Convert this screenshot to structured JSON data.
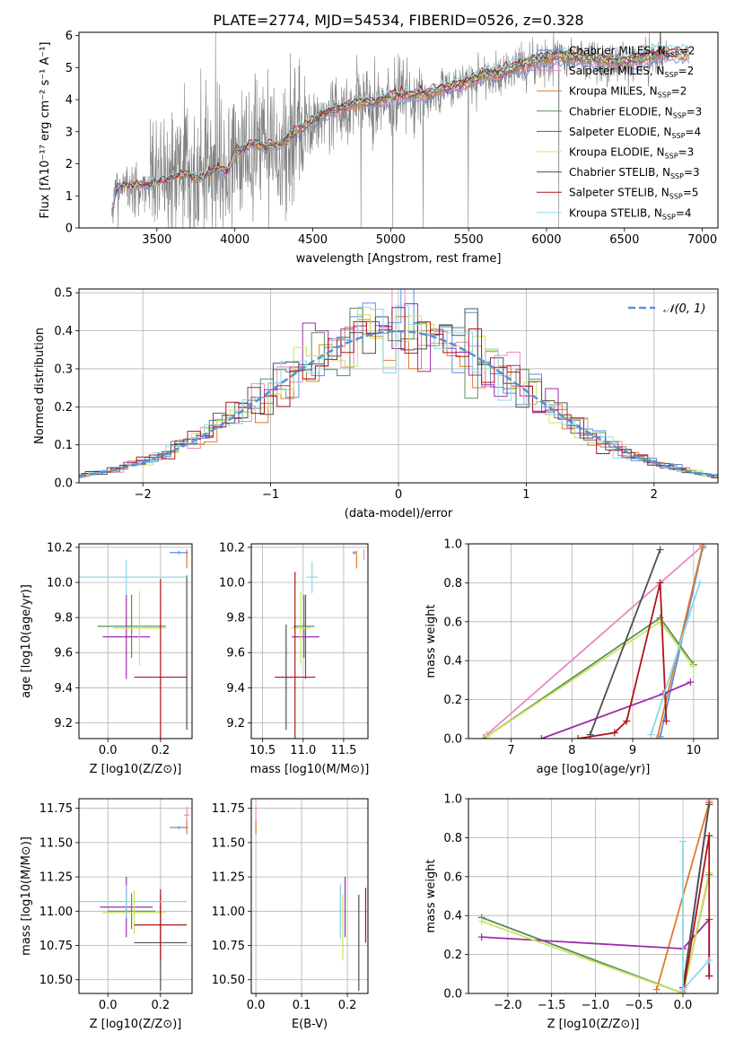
{
  "figure": {
    "title": "PLATE=2774, MJD=54534, FIBERID=0526, z=0.328"
  },
  "colors": {
    "data": "#808080",
    "normal_curve": "#5b8fd6"
  },
  "legend_models": [
    {
      "name": "Chabrier MILES",
      "nssp": 2,
      "color": "#5b8ee6"
    },
    {
      "name": "Salpeter MILES",
      "nssp": 2,
      "color": "#e98ac2"
    },
    {
      "name": "Kroupa MILES",
      "nssp": 2,
      "color": "#e07b28"
    },
    {
      "name": "Chabrier ELODIE",
      "nssp": 3,
      "color": "#5c8c5c"
    },
    {
      "name": "Salpeter ELODIE",
      "nssp": 4,
      "color": "#9b2ea8"
    },
    {
      "name": "Kroupa ELODIE",
      "nssp": 3,
      "color": "#c8e65a"
    },
    {
      "name": "Chabrier STELIB",
      "nssp": 3,
      "color": "#505050"
    },
    {
      "name": "Salpeter STELIB",
      "nssp": 5,
      "color": "#b0141c"
    },
    {
      "name": "Kroupa STELIB",
      "nssp": 4,
      "color": "#8ad8e8"
    }
  ],
  "chart_data": [
    {
      "id": "spectrum",
      "type": "line",
      "xlabel": "wavelength [Angstrom, rest frame]",
      "ylabel": "Flux [fλ10⁻¹⁷ erg cm⁻² s⁻¹ A⁻¹]",
      "xlim": [
        3000,
        7100
      ],
      "ylim": [
        0,
        6.1
      ],
      "xticks": [
        3500,
        4000,
        4500,
        5000,
        5500,
        6000,
        6500,
        7000
      ],
      "yticks": [
        0,
        1,
        2,
        3,
        4,
        5,
        6
      ],
      "grid": false,
      "legend": "upper right",
      "data_range": [
        3210,
        6780
      ],
      "model_continuum": [
        [
          3210,
          0.1
        ],
        [
          3230,
          1.15
        ],
        [
          3260,
          1.3
        ],
        [
          3300,
          1.28
        ],
        [
          3400,
          1.35
        ],
        [
          3500,
          1.4
        ],
        [
          3600,
          1.55
        ],
        [
          3700,
          1.7
        ],
        [
          3750,
          1.5
        ],
        [
          3850,
          1.75
        ],
        [
          3900,
          1.9
        ],
        [
          3950,
          1.7
        ],
        [
          4000,
          2.3
        ],
        [
          4100,
          2.6
        ],
        [
          4200,
          2.5
        ],
        [
          4300,
          2.6
        ],
        [
          4400,
          3.0
        ],
        [
          4500,
          3.3
        ],
        [
          4600,
          3.6
        ],
        [
          4700,
          3.7
        ],
        [
          4800,
          3.9
        ],
        [
          4900,
          3.85
        ],
        [
          5000,
          4.05
        ],
        [
          5100,
          4.1
        ],
        [
          5200,
          4.1
        ],
        [
          5300,
          4.25
        ],
        [
          5400,
          4.35
        ],
        [
          5500,
          4.5
        ],
        [
          5600,
          4.75
        ],
        [
          5700,
          4.75
        ],
        [
          5800,
          4.95
        ],
        [
          5900,
          5.1
        ],
        [
          6000,
          5.25
        ],
        [
          6100,
          5.3
        ],
        [
          6200,
          5.25
        ],
        [
          6300,
          5.2
        ],
        [
          6400,
          5.15
        ],
        [
          6500,
          5.1
        ],
        [
          6600,
          5.2
        ],
        [
          6700,
          5.35
        ],
        [
          6800,
          5.4
        ],
        [
          6900,
          5.35
        ]
      ]
    },
    {
      "id": "residuals",
      "type": "histogram",
      "xlabel": "(data-model)/error",
      "ylabel": "Normed distribution",
      "xlim": [
        -2.5,
        2.5
      ],
      "ylim": [
        0,
        0.51
      ],
      "xticks": [
        -2,
        -1,
        0,
        1,
        2
      ],
      "yticks": [
        0.0,
        0.1,
        0.2,
        0.3,
        0.4,
        0.5
      ],
      "grid": true,
      "legend": "upper right",
      "bin_width": 0.1,
      "reference_curve": "N(0,1)"
    },
    {
      "id": "age-vs-Z",
      "type": "errorbar",
      "xlabel": "Z [log10(Z/Z⊙)]",
      "ylabel": "age [log10(age/yr)]",
      "xlim": [
        -0.11,
        0.32
      ],
      "ylim": [
        9.11,
        10.22
      ],
      "xticks": [
        0.0,
        0.2
      ],
      "yticks": [
        9.2,
        9.4,
        9.6,
        9.8,
        10.0,
        10.2
      ],
      "grid": true,
      "points": [
        {
          "m": 0,
          "x": 0.27,
          "y": 10.17,
          "xe": 0.035,
          "ye": 0.01
        },
        {
          "m": 1,
          "x": 0.3,
          "y": 10.17,
          "xe": 0.0,
          "ye": 0.02
        },
        {
          "m": 2,
          "x": 0.3,
          "y": 10.13,
          "xe": 0.0,
          "ye": 0.05
        },
        {
          "m": 3,
          "x": 0.09,
          "y": 9.75,
          "xe": 0.13,
          "ye": 0.18
        },
        {
          "m": 4,
          "x": 0.07,
          "y": 9.69,
          "xe": 0.09,
          "ye": 0.24
        },
        {
          "m": 5,
          "x": 0.12,
          "y": 9.74,
          "xe": 0.1,
          "ye": 0.21
        },
        {
          "m": 6,
          "x": 0.3,
          "y": 9.6,
          "xe": 0.0,
          "ye": 0.44
        },
        {
          "m": 7,
          "x": 0.2,
          "y": 9.46,
          "xe": 0.1,
          "ye": 0.56
        },
        {
          "m": 8,
          "x": 0.07,
          "y": 10.03,
          "xe": 0.23,
          "ye": 0.1
        }
      ]
    },
    {
      "id": "age-vs-mass",
      "type": "errorbar",
      "xlabel": "mass [log10(M/M⊙)]",
      "ylabel": "",
      "xlim": [
        10.36,
        11.8
      ],
      "ylim": [
        9.11,
        10.22
      ],
      "xticks": [
        10.5,
        11.0,
        11.5
      ],
      "yticks": [
        9.2,
        9.4,
        9.6,
        9.8,
        10.0,
        10.2
      ],
      "grid": true,
      "points": [
        {
          "m": 0,
          "x": 11.63,
          "y": 10.17,
          "xe": 0.02,
          "ye": 0.01
        },
        {
          "m": 1,
          "x": 11.75,
          "y": 10.16,
          "xe": 0.0,
          "ye": 0.03
        },
        {
          "m": 2,
          "x": 11.66,
          "y": 10.13,
          "xe": 0.0,
          "ye": 0.05
        },
        {
          "m": 3,
          "x": 11.01,
          "y": 9.75,
          "xe": 0.13,
          "ye": 0.18
        },
        {
          "m": 4,
          "x": 11.03,
          "y": 9.69,
          "xe": 0.17,
          "ye": 0.24
        },
        {
          "m": 5,
          "x": 10.97,
          "y": 9.74,
          "xe": 0.12,
          "ye": 0.21
        },
        {
          "m": 6,
          "x": 10.79,
          "y": 9.46,
          "xe": 0.1,
          "ye": 0.3
        },
        {
          "m": 7,
          "x": 10.9,
          "y": 9.46,
          "xe": 0.25,
          "ye": 0.6
        },
        {
          "m": 8,
          "x": 11.11,
          "y": 10.03,
          "xe": 0.07,
          "ye": 0.09
        }
      ]
    },
    {
      "id": "weight-vs-age",
      "type": "line",
      "xlabel": "age [log10(age/yr)]",
      "ylabel": "mass weight",
      "xlim": [
        6.3,
        10.4
      ],
      "ylim": [
        0,
        1.0
      ],
      "xticks": [
        7,
        8,
        9,
        10
      ],
      "yticks": [
        0.0,
        0.2,
        0.4,
        0.6,
        0.8,
        1.0
      ],
      "grid": true,
      "series": [
        {
          "m": 0,
          "points": [
            [
              9.45,
              0.01
            ],
            [
              10.15,
              0.98
            ]
          ]
        },
        {
          "m": 1,
          "points": [
            [
              6.6,
              0.02
            ],
            [
              10.15,
              0.99
            ]
          ]
        },
        {
          "m": 2,
          "points": [
            [
              9.4,
              0.0
            ],
            [
              10.15,
              0.99
            ]
          ]
        },
        {
          "m": 3,
          "points": [
            [
              6.55,
              0.0
            ],
            [
              9.45,
              0.62
            ],
            [
              10.0,
              0.38
            ]
          ]
        },
        {
          "m": 4,
          "points": [
            [
              7.5,
              0.0
            ],
            [
              9.5,
              0.23
            ],
            [
              9.95,
              0.29
            ]
          ]
        },
        {
          "m": 5,
          "points": [
            [
              6.6,
              0.01
            ],
            [
              9.45,
              0.6
            ],
            [
              10.0,
              0.37
            ]
          ]
        },
        {
          "m": 6,
          "points": [
            [
              8.3,
              0.02
            ],
            [
              9.45,
              0.97
            ]
          ]
        },
        {
          "m": 7,
          "points": [
            [
              8.1,
              0.0
            ],
            [
              8.7,
              0.03
            ],
            [
              8.9,
              0.09
            ],
            [
              9.45,
              0.8
            ],
            [
              9.55,
              0.09
            ]
          ]
        },
        {
          "m": 8,
          "points": [
            [
              9.3,
              0.02
            ],
            [
              10.1,
              0.8
            ]
          ]
        }
      ]
    },
    {
      "id": "mass-vs-Z",
      "type": "errorbar",
      "xlabel": "Z [log10(Z/Z⊙)]",
      "ylabel": "mass [log10(M/M⊙)]",
      "xlim": [
        -0.11,
        0.32
      ],
      "ylim": [
        10.4,
        11.82
      ],
      "xticks": [
        0.0,
        0.2
      ],
      "yticks": [
        10.5,
        10.75,
        11.0,
        11.25,
        11.5,
        11.75
      ],
      "grid": true,
      "points": [
        {
          "m": 0,
          "x": 0.27,
          "y": 11.61,
          "xe": 0.035,
          "ye": 0.01
        },
        {
          "m": 1,
          "x": 0.3,
          "y": 11.7,
          "xe": 0.01,
          "ye": 0.06
        },
        {
          "m": 2,
          "x": 0.3,
          "y": 11.61,
          "xe": 0.0,
          "ye": 0.05
        },
        {
          "m": 3,
          "x": 0.09,
          "y": 11.0,
          "xe": 0.09,
          "ye": 0.13
        },
        {
          "m": 4,
          "x": 0.07,
          "y": 11.03,
          "xe": 0.1,
          "ye": 0.22
        },
        {
          "m": 5,
          "x": 0.1,
          "y": 10.99,
          "xe": 0.12,
          "ye": 0.16
        },
        {
          "m": 6,
          "x": 0.2,
          "y": 10.77,
          "xe": 0.1,
          "ye": 0.35
        },
        {
          "m": 7,
          "x": 0.2,
          "y": 10.9,
          "xe": 0.1,
          "ye": 0.26
        },
        {
          "m": 8,
          "x": 0.07,
          "y": 11.07,
          "xe": 0.23,
          "ye": 0.12
        }
      ]
    },
    {
      "id": "mass-vs-ebv",
      "type": "errorbar",
      "xlabel": "E(B-V)",
      "ylabel": "",
      "xlim": [
        -0.01,
        0.245
      ],
      "ylim": [
        10.4,
        11.82
      ],
      "xticks": [
        0.0,
        0.1,
        0.2
      ],
      "yticks": [
        10.5,
        10.75,
        11.0,
        11.25,
        11.5,
        11.75
      ],
      "grid": true,
      "points": [
        {
          "m": 0,
          "x": 0.0,
          "y": 11.61,
          "xe": 0.0,
          "ye": 0.01
        },
        {
          "m": 1,
          "x": 0.0,
          "y": 11.7,
          "xe": 0.0,
          "ye": 0.06
        },
        {
          "m": 2,
          "x": 0.0,
          "y": 11.61,
          "xe": 0.0,
          "ye": 0.05
        },
        {
          "m": 3,
          "x": 0.185,
          "y": 11.0,
          "xe": 0.0,
          "ye": 0.18
        },
        {
          "m": 4,
          "x": 0.195,
          "y": 11.03,
          "xe": 0.0,
          "ye": 0.22
        },
        {
          "m": 5,
          "x": 0.19,
          "y": 10.88,
          "xe": 0.0,
          "ye": 0.24
        },
        {
          "m": 6,
          "x": 0.225,
          "y": 10.77,
          "xe": 0.0,
          "ye": 0.35
        },
        {
          "m": 7,
          "x": 0.24,
          "y": 10.97,
          "xe": 0.0,
          "ye": 0.2
        },
        {
          "m": 8,
          "x": 0.185,
          "y": 11.0,
          "xe": 0.0,
          "ye": 0.2
        }
      ]
    },
    {
      "id": "weight-vs-Z",
      "type": "line",
      "xlabel": "Z [log10(Z/Z⊙)]",
      "ylabel": "mass weight",
      "xlim": [
        -2.45,
        0.4
      ],
      "ylim": [
        0,
        1.0
      ],
      "xticks": [
        -2.0,
        -1.5,
        -1.0,
        -0.5,
        0.0
      ],
      "yticks": [
        0.0,
        0.2,
        0.4,
        0.6,
        0.8,
        1.0
      ],
      "grid": true,
      "series": [
        {
          "m": 0,
          "points": [
            [
              0.0,
              0.0
            ],
            [
              0.3,
              0.98
            ]
          ]
        },
        {
          "m": 1,
          "points": [
            [
              0.0,
              0.01
            ],
            [
              0.3,
              0.99
            ]
          ]
        },
        {
          "m": 2,
          "points": [
            [
              -0.3,
              0.02
            ],
            [
              0.3,
              0.98
            ]
          ]
        },
        {
          "m": 3,
          "points": [
            [
              -2.3,
              0.39
            ],
            [
              0.0,
              0.0
            ],
            [
              0.3,
              0.61
            ]
          ]
        },
        {
          "m": 4,
          "points": [
            [
              -2.3,
              0.29
            ],
            [
              0.0,
              0.23
            ],
            [
              0.3,
              0.38
            ],
            [
              0.3,
              0.09
            ]
          ]
        },
        {
          "m": 5,
          "points": [
            [
              -2.3,
              0.37
            ],
            [
              0.0,
              0.0
            ],
            [
              0.3,
              0.62
            ]
          ]
        },
        {
          "m": 6,
          "points": [
            [
              0.0,
              0.03
            ],
            [
              0.3,
              0.97
            ]
          ]
        },
        {
          "m": 7,
          "points": [
            [
              0.0,
              0.0
            ],
            [
              0.3,
              0.81
            ],
            [
              0.3,
              0.09
            ]
          ]
        },
        {
          "m": 8,
          "points": [
            [
              0.0,
              0.0
            ],
            [
              0.0,
              0.78
            ],
            [
              0.0,
              0.02
            ],
            [
              0.3,
              0.17
            ]
          ]
        }
      ]
    }
  ]
}
